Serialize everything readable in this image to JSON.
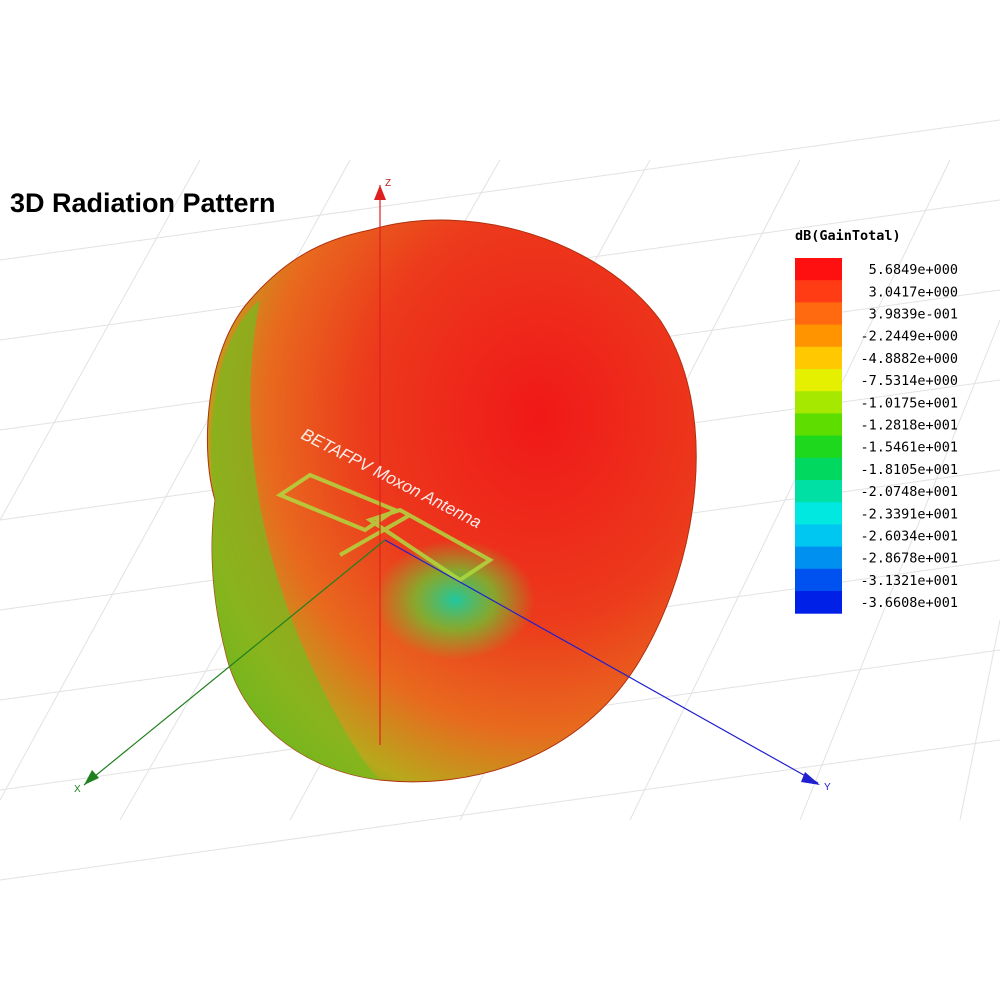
{
  "title": "3D Radiation Pattern",
  "antenna_label": "BETAFPV Moxon Antenna",
  "axes": {
    "z": "Z",
    "y": "Y",
    "x": "X"
  },
  "legend": {
    "title": "dB(GainTotal)",
    "entries": [
      {
        "label": "5.6849e+000",
        "color": "#ff1010"
      },
      {
        "label": "3.0417e+000",
        "color": "#ff3c14"
      },
      {
        "label": "3.9839e-001",
        "color": "#ff6a10"
      },
      {
        "label": "-2.2449e+000",
        "color": "#ff9400"
      },
      {
        "label": "-4.8882e+000",
        "color": "#ffc800"
      },
      {
        "label": "-7.5314e+000",
        "color": "#e4f000"
      },
      {
        "label": "-1.0175e+001",
        "color": "#a6e800"
      },
      {
        "label": "-1.2818e+001",
        "color": "#5ede00"
      },
      {
        "label": "-1.5461e+001",
        "color": "#1ed81e"
      },
      {
        "label": "-1.8105e+001",
        "color": "#00d860"
      },
      {
        "label": "-2.0748e+001",
        "color": "#00e0a4"
      },
      {
        "label": "-2.3391e+001",
        "color": "#00e8e0"
      },
      {
        "label": "-2.6034e+001",
        "color": "#00c6f2"
      },
      {
        "label": "-2.8678e+001",
        "color": "#0090f0"
      },
      {
        "label": "-3.1321e+001",
        "color": "#0052f0"
      },
      {
        "label": "-3.6608e+001",
        "color": "#0020e8"
      }
    ]
  }
}
